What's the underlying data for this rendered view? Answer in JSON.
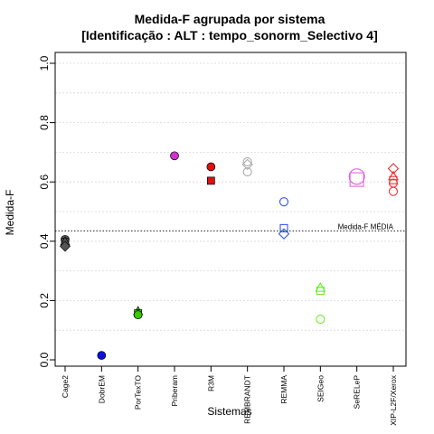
{
  "chart_data": {
    "type": "scatter",
    "title_line1": "Medida-F agrupada por sistema",
    "title_line2": "[Identificação : ALT : tempo_sonorm_Selectivo 4]",
    "xlabel": "Sistemas",
    "ylabel": "Medida-F",
    "ylim": [
      0.0,
      1.0
    ],
    "yticks": [
      0.0,
      0.2,
      0.4,
      0.6,
      0.8,
      1.0
    ],
    "ytick_labels": [
      "0.0",
      "0.2",
      "0.4",
      "0.6",
      "0.8",
      "1.0"
    ],
    "grid": "horizontal dotted",
    "categories": [
      "Cage2",
      "DobrEM",
      "PorTexTO",
      "Priberam",
      "R3M",
      "REMBRANDT",
      "REMMA",
      "SEIGeo",
      "SeRELeP",
      "XIP-L2F/Xerox"
    ],
    "reference_line": {
      "label": "Medida-F MÉDIA",
      "value": 0.435
    },
    "series": [
      {
        "category": "Cage2",
        "color": "#555555",
        "points": [
          {
            "y": 0.406,
            "shape": "circle",
            "filled": true
          },
          {
            "y": 0.398,
            "shape": "square",
            "filled": true
          },
          {
            "y": 0.398,
            "shape": "triangle",
            "filled": true
          },
          {
            "y": 0.383,
            "shape": "diamond",
            "filled": true
          }
        ]
      },
      {
        "category": "DobrEM",
        "color": "#1010dd",
        "points": [
          {
            "y": 0.015,
            "shape": "circle",
            "filled": true
          }
        ]
      },
      {
        "category": "PorTexTO",
        "color": "#33cc00",
        "points": [
          {
            "y": 0.163,
            "shape": "triangle",
            "filled": true
          },
          {
            "y": 0.157,
            "shape": "square",
            "filled": true
          },
          {
            "y": 0.152,
            "shape": "circle",
            "filled": true
          }
        ]
      },
      {
        "category": "Priberam",
        "color": "#cc33cc",
        "points": [
          {
            "y": 0.688,
            "shape": "circle",
            "filled": true
          }
        ]
      },
      {
        "category": "R3M",
        "color": "#dd1111",
        "points": [
          {
            "y": 0.651,
            "shape": "circle",
            "filled": true
          },
          {
            "y": 0.604,
            "shape": "square",
            "filled": true
          }
        ]
      },
      {
        "category": "REMBRANDT",
        "color": "#aaaaaa",
        "points": [
          {
            "y": 0.668,
            "shape": "circle",
            "filled": false
          },
          {
            "y": 0.659,
            "shape": "diamond",
            "filled": false
          },
          {
            "y": 0.634,
            "shape": "circle",
            "filled": false
          }
        ]
      },
      {
        "category": "REMMA",
        "color": "#3355ee",
        "points": [
          {
            "y": 0.533,
            "shape": "circle",
            "filled": false
          },
          {
            "y": 0.444,
            "shape": "square",
            "filled": false
          },
          {
            "y": 0.425,
            "shape": "diamond",
            "filled": false
          }
        ]
      },
      {
        "category": "SEIGeo",
        "color": "#66ee22",
        "points": [
          {
            "y": 0.242,
            "shape": "triangle",
            "filled": false
          },
          {
            "y": 0.233,
            "shape": "square",
            "filled": false
          },
          {
            "y": 0.137,
            "shape": "circle",
            "filled": false
          }
        ]
      },
      {
        "category": "SeRELeP",
        "color": "#dd66dd",
        "points": [
          {
            "y": 0.618,
            "shape": "bigcircle",
            "filled": false
          },
          {
            "y": 0.608,
            "shape": "bigsquare",
            "filled": false
          }
        ]
      },
      {
        "category": "XIP-L2F/Xerox",
        "color": "#ee3333",
        "points": [
          {
            "y": 0.645,
            "shape": "diamond",
            "filled": false
          },
          {
            "y": 0.618,
            "shape": "triangle",
            "filled": false
          },
          {
            "y": 0.606,
            "shape": "square",
            "filled": false
          },
          {
            "y": 0.596,
            "shape": "circle",
            "filled": false
          },
          {
            "y": 0.568,
            "shape": "circle",
            "filled": false
          }
        ]
      }
    ]
  }
}
